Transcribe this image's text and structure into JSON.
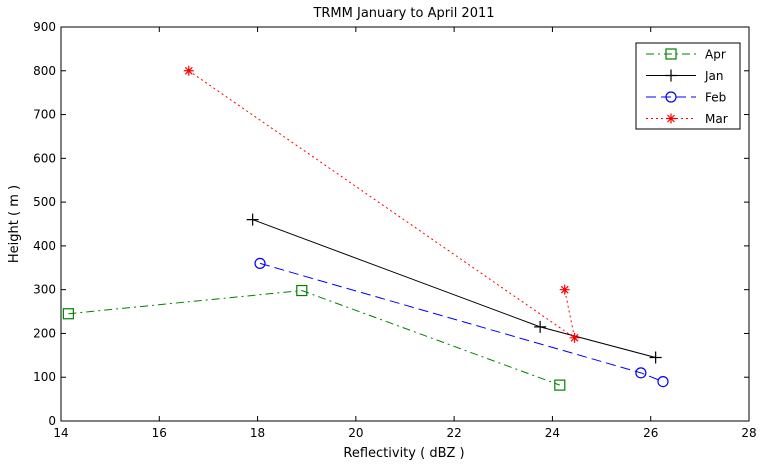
{
  "chart_data": {
    "type": "line",
    "title": "TRMM January to April 2011",
    "xlabel": "Reflectivity ( dBZ )",
    "ylabel": "Height ( m )",
    "xlim": [
      14,
      28
    ],
    "ylim": [
      0,
      900
    ],
    "xticks": [
      14,
      16,
      18,
      20,
      22,
      24,
      26,
      28
    ],
    "yticks": [
      0,
      100,
      200,
      300,
      400,
      500,
      600,
      700,
      800,
      900
    ],
    "grid": false,
    "legend_position": "top-right",
    "series": [
      {
        "name": "Apr",
        "color": "#008000",
        "line": "dash-dot",
        "marker": "square",
        "points": [
          [
            14.15,
            245
          ],
          [
            18.9,
            298
          ],
          [
            24.15,
            82
          ]
        ]
      },
      {
        "name": "Jan",
        "color": "#000000",
        "line": "solid",
        "marker": "plus",
        "points": [
          [
            17.9,
            460
          ],
          [
            23.75,
            215
          ],
          [
            26.1,
            145
          ]
        ]
      },
      {
        "name": "Feb",
        "color": "#0000ff",
        "line": "dashed",
        "marker": "circle",
        "points": [
          [
            18.05,
            360
          ],
          [
            25.8,
            110
          ],
          [
            26.25,
            90
          ]
        ]
      },
      {
        "name": "Mar",
        "color": "#ff0000",
        "line": "dotted",
        "marker": "star",
        "points": [
          [
            16.6,
            800
          ],
          [
            24.45,
            190
          ],
          [
            24.25,
            300
          ]
        ]
      }
    ]
  }
}
